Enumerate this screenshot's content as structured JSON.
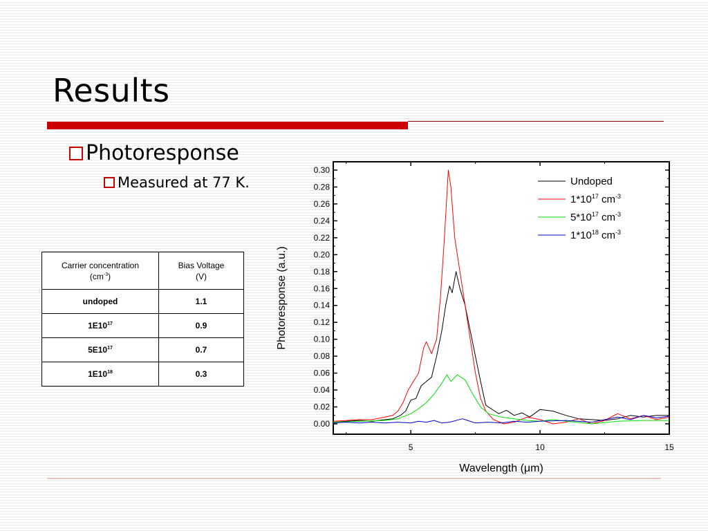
{
  "slide": {
    "title": "Results",
    "bullets": [
      "Photoresponse",
      "Measured at 77 K."
    ]
  },
  "table": {
    "headers": [
      {
        "text": "Carrier concentration",
        "line2": "(cm",
        "sup": "-3",
        "line2_end": ")"
      },
      {
        "text": "Bias Voltage",
        "line2": "(V)"
      }
    ],
    "rows": [
      {
        "concentration": "undoped",
        "sup": "",
        "voltage": "1.1"
      },
      {
        "concentration": "1E10",
        "sup": "17",
        "voltage": "0.9"
      },
      {
        "concentration": "5E10",
        "sup": "17",
        "voltage": "0.7"
      },
      {
        "concentration": "1E10",
        "sup": "18",
        "voltage": "0.3"
      }
    ]
  },
  "chart_data": {
    "type": "line",
    "xlabel_prefix": "Wavelength (",
    "xlabel_unit": "μm",
    "xlabel_suffix": ")",
    "ylabel": "Photoresponse (a.u.)",
    "xlim": [
      2,
      15
    ],
    "ylim": [
      0,
      0.3
    ],
    "xticks": [
      5,
      10,
      15
    ],
    "yticks": [
      0.0,
      0.02,
      0.04,
      0.06,
      0.08,
      0.1,
      0.12,
      0.14,
      0.16,
      0.18,
      0.2,
      0.22,
      0.24,
      0.26,
      0.28,
      0.3
    ],
    "legend_position": "top-right",
    "grid": false,
    "series": [
      {
        "name": "Undoped",
        "sup": "",
        "unit": "",
        "unit_sup": "",
        "color": "#000000",
        "points": [
          [
            2,
            0.002
          ],
          [
            2.5,
            0.003
          ],
          [
            3,
            0.004
          ],
          [
            3.5,
            0.003
          ],
          [
            4,
            0.005
          ],
          [
            4.3,
            0.006
          ],
          [
            4.6,
            0.01
          ],
          [
            4.8,
            0.015
          ],
          [
            5.0,
            0.028
          ],
          [
            5.2,
            0.03
          ],
          [
            5.4,
            0.045
          ],
          [
            5.6,
            0.05
          ],
          [
            5.8,
            0.055
          ],
          [
            6.0,
            0.08
          ],
          [
            6.2,
            0.11
          ],
          [
            6.35,
            0.14
          ],
          [
            6.5,
            0.163
          ],
          [
            6.6,
            0.155
          ],
          [
            6.75,
            0.18
          ],
          [
            6.9,
            0.16
          ],
          [
            7.1,
            0.14
          ],
          [
            7.3,
            0.11
          ],
          [
            7.5,
            0.08
          ],
          [
            7.7,
            0.05
          ],
          [
            7.9,
            0.022
          ],
          [
            8.1,
            0.018
          ],
          [
            8.4,
            0.012
          ],
          [
            8.7,
            0.016
          ],
          [
            9.0,
            0.01
          ],
          [
            9.3,
            0.013
          ],
          [
            9.6,
            0.008
          ],
          [
            10.0,
            0.017
          ],
          [
            10.5,
            0.015
          ],
          [
            11.0,
            0.01
          ],
          [
            11.5,
            0.006
          ],
          [
            12.0,
            0.005
          ],
          [
            12.5,
            0.004
          ],
          [
            13.0,
            0.006
          ],
          [
            13.5,
            0.01
          ],
          [
            14.0,
            0.008
          ],
          [
            14.5,
            0.01
          ],
          [
            15.0,
            0.01
          ]
        ]
      },
      {
        "name": "1*10",
        "sup": "17",
        "unit": "cm",
        "unit_sup": "-3",
        "color": "#ff0000",
        "points": [
          [
            2,
            0.003
          ],
          [
            2.5,
            0.004
          ],
          [
            3,
            0.005
          ],
          [
            3.5,
            0.005
          ],
          [
            4,
            0.008
          ],
          [
            4.3,
            0.01
          ],
          [
            4.5,
            0.015
          ],
          [
            4.7,
            0.025
          ],
          [
            4.9,
            0.04
          ],
          [
            5.1,
            0.05
          ],
          [
            5.3,
            0.06
          ],
          [
            5.5,
            0.09
          ],
          [
            5.6,
            0.097
          ],
          [
            5.8,
            0.083
          ],
          [
            6.0,
            0.1
          ],
          [
            6.15,
            0.15
          ],
          [
            6.3,
            0.22
          ],
          [
            6.45,
            0.3
          ],
          [
            6.55,
            0.28
          ],
          [
            6.7,
            0.22
          ],
          [
            6.9,
            0.18
          ],
          [
            7.1,
            0.14
          ],
          [
            7.3,
            0.1
          ],
          [
            7.5,
            0.06
          ],
          [
            7.7,
            0.03
          ],
          [
            7.9,
            0.015
          ],
          [
            8.2,
            0.005
          ],
          [
            8.6,
            0.0
          ],
          [
            9.0,
            0.002
          ],
          [
            9.5,
            0.008
          ],
          [
            10.0,
            0.005
          ],
          [
            10.5,
            0.0
          ],
          [
            11.0,
            0.002
          ],
          [
            11.5,
            0.006
          ],
          [
            12.0,
            0.0
          ],
          [
            12.5,
            0.004
          ],
          [
            13.0,
            0.012
          ],
          [
            13.5,
            0.006
          ],
          [
            14.0,
            0.01
          ],
          [
            14.5,
            0.005
          ],
          [
            15.0,
            0.008
          ]
        ]
      },
      {
        "name": "5*10",
        "sup": "17",
        "unit": "cm",
        "unit_sup": "-3",
        "color": "#00dd00",
        "points": [
          [
            2,
            0.002
          ],
          [
            3,
            0.003
          ],
          [
            4,
            0.004
          ],
          [
            4.5,
            0.006
          ],
          [
            5.0,
            0.012
          ],
          [
            5.3,
            0.018
          ],
          [
            5.6,
            0.025
          ],
          [
            5.9,
            0.035
          ],
          [
            6.2,
            0.048
          ],
          [
            6.4,
            0.058
          ],
          [
            6.55,
            0.05
          ],
          [
            6.8,
            0.058
          ],
          [
            7.1,
            0.052
          ],
          [
            7.4,
            0.035
          ],
          [
            7.7,
            0.02
          ],
          [
            8.0,
            0.012
          ],
          [
            8.5,
            0.008
          ],
          [
            9.0,
            0.006
          ],
          [
            9.5,
            0.004
          ],
          [
            10.0,
            0.003
          ],
          [
            10.5,
            0.005
          ],
          [
            11.0,
            0.003
          ],
          [
            12.0,
            0.0
          ],
          [
            13.0,
            0.003
          ],
          [
            14.0,
            0.004
          ],
          [
            15.0,
            0.004
          ]
        ]
      },
      {
        "name": "1*10",
        "sup": "18",
        "unit": "cm",
        "unit_sup": "-3",
        "color": "#0000cc",
        "points": [
          [
            2,
            0.001
          ],
          [
            2.5,
            0.002
          ],
          [
            3,
            0.001
          ],
          [
            3.5,
            0.002
          ],
          [
            4,
            0.001
          ],
          [
            4.5,
            0.002
          ],
          [
            5.0,
            0.001
          ],
          [
            5.3,
            0.003
          ],
          [
            5.6,
            0.002
          ],
          [
            5.9,
            0.004
          ],
          [
            6.2,
            0.001
          ],
          [
            6.5,
            0.002
          ],
          [
            7.0,
            0.006
          ],
          [
            7.2,
            0.004
          ],
          [
            7.5,
            0.001
          ],
          [
            8.0,
            0.002
          ],
          [
            8.5,
            0.001
          ],
          [
            9.0,
            0.003
          ],
          [
            9.5,
            0.002
          ],
          [
            10.0,
            0.003
          ],
          [
            11.0,
            0.004
          ],
          [
            12.0,
            0.002
          ],
          [
            13.0,
            0.008
          ],
          [
            13.5,
            0.005
          ],
          [
            14.0,
            0.01
          ],
          [
            14.5,
            0.007
          ],
          [
            15.0,
            0.009
          ]
        ]
      }
    ]
  }
}
